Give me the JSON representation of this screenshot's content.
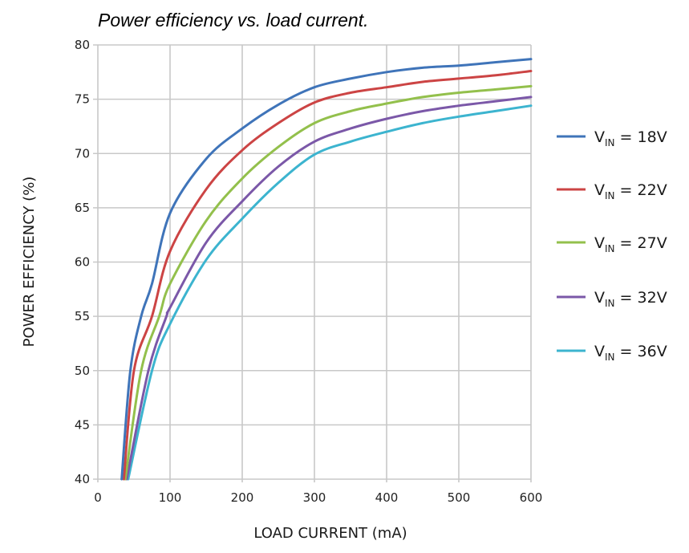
{
  "chart_data": {
    "type": "line",
    "title": "Power efficiency vs. load current.",
    "xlabel": "LOAD CURRENT (mA)",
    "ylabel": "POWER EFFICIENCY (%)",
    "xlim": [
      0,
      600
    ],
    "ylim": [
      40,
      80
    ],
    "xticks": [
      0,
      100,
      200,
      300,
      400,
      500,
      600
    ],
    "yticks": [
      40,
      45,
      50,
      55,
      60,
      65,
      70,
      75,
      80
    ],
    "grid": true,
    "legend_position": "right",
    "series": [
      {
        "name": "VIN = 18V",
        "label_main": "V",
        "label_sub": "IN",
        "label_rest": " = 18V",
        "color": "#3f74b9",
        "x": [
          33,
          45,
          60,
          75,
          100,
          150,
          200,
          250,
          300,
          350,
          400,
          450,
          500,
          550,
          600
        ],
        "y": [
          40,
          50,
          55,
          58,
          64.5,
          69.5,
          72.3,
          74.5,
          76.1,
          76.9,
          77.5,
          77.9,
          78.1,
          78.4,
          78.7
        ]
      },
      {
        "name": "VIN = 22V",
        "label_main": "V",
        "label_sub": "IN",
        "label_rest": " = 22V",
        "color": "#cc4444",
        "x": [
          36,
          50,
          75,
          100,
          150,
          200,
          250,
          300,
          350,
          400,
          450,
          500,
          550,
          600
        ],
        "y": [
          40,
          50,
          55,
          61,
          66.7,
          70.3,
          72.8,
          74.7,
          75.6,
          76.1,
          76.6,
          76.9,
          77.2,
          77.6
        ]
      },
      {
        "name": "VIN = 27V",
        "label_main": "V",
        "label_sub": "IN",
        "label_rest": " = 27V",
        "color": "#93c04c",
        "x": [
          38,
          60,
          85,
          100,
          150,
          200,
          250,
          300,
          350,
          400,
          450,
          500,
          550,
          600
        ],
        "y": [
          40,
          50,
          55,
          58,
          63.8,
          67.7,
          70.6,
          72.8,
          73.9,
          74.6,
          75.2,
          75.6,
          75.9,
          76.2
        ]
      },
      {
        "name": "VIN = 32V",
        "label_main": "V",
        "label_sub": "IN",
        "label_rest": " = 32V",
        "color": "#7b58a8",
        "x": [
          40,
          70,
          95,
          100,
          150,
          200,
          250,
          300,
          350,
          400,
          450,
          500,
          550,
          600
        ],
        "y": [
          40,
          50,
          55,
          55.8,
          61.8,
          65.6,
          68.8,
          71.1,
          72.3,
          73.2,
          73.9,
          74.4,
          74.8,
          75.2
        ]
      },
      {
        "name": "VIN = 36V",
        "label_main": "V",
        "label_sub": "IN",
        "label_rest": " = 36V",
        "color": "#3cb4cf",
        "x": [
          42,
          75,
          100,
          150,
          200,
          250,
          300,
          350,
          400,
          450,
          500,
          550,
          600
        ],
        "y": [
          40,
          50,
          54.3,
          60.2,
          64,
          67.3,
          69.9,
          71.1,
          72,
          72.8,
          73.4,
          73.9,
          74.4
        ]
      }
    ]
  }
}
